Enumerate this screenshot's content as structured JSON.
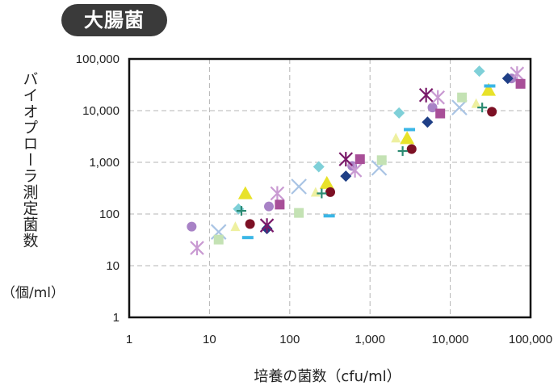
{
  "badge": {
    "label": "大腸菌"
  },
  "chart_data": {
    "type": "scatter",
    "title": "大腸菌",
    "xlabel": "培養の菌数（cfu/ml）",
    "ylabel": "バイオプローラ測定菌数",
    "yunit": "（個/ml）",
    "xscale": "log",
    "yscale": "log",
    "xlim": [
      1,
      100000
    ],
    "ylim": [
      1,
      100000
    ],
    "xticks": [
      "1",
      "10",
      "100",
      "1,000",
      "10,000",
      "100,000"
    ],
    "yticks": [
      "1",
      "10",
      "100",
      "1,000",
      "10,000",
      "100,000"
    ],
    "grid": "dashed",
    "legend": "none",
    "series": [
      {
        "marker": "circle",
        "color": "#a882c6",
        "points": [
          [
            6,
            57
          ],
          [
            55,
            140
          ],
          [
            600,
            850
          ],
          [
            6000,
            11500
          ],
          [
            58000,
            42000
          ]
        ]
      },
      {
        "marker": "x",
        "color": "#a9c4e4",
        "points": [
          [
            13,
            45
          ],
          [
            130,
            340
          ],
          [
            1300,
            780
          ],
          [
            13000,
            11500
          ]
        ]
      },
      {
        "marker": "asterisk",
        "color": "#c99ad2",
        "points": [
          [
            7,
            22
          ],
          [
            70,
            250
          ],
          [
            650,
            700
          ],
          [
            7000,
            18000
          ],
          [
            68000,
            52000
          ]
        ]
      },
      {
        "marker": "square",
        "color": "#c4e2b4",
        "points": [
          [
            13,
            32
          ],
          [
            130,
            105
          ],
          [
            1400,
            1100
          ],
          [
            14000,
            18000
          ]
        ]
      },
      {
        "marker": "triangle-large",
        "color": "#e8e22a",
        "points": [
          [
            28,
            240
          ],
          [
            290,
            380
          ],
          [
            2900,
            2800
          ],
          [
            30000,
            24000
          ]
        ]
      },
      {
        "marker": "triangle-small",
        "color": "#eef0a0",
        "points": [
          [
            21,
            56
          ],
          [
            210,
            260
          ],
          [
            2100,
            2900
          ],
          [
            21000,
            13500
          ]
        ]
      },
      {
        "marker": "diamond",
        "color": "#7fd0d8",
        "points": [
          [
            23,
            125
          ],
          [
            230,
            820
          ],
          [
            2300,
            9000
          ],
          [
            23000,
            58000
          ]
        ]
      },
      {
        "marker": "square",
        "color": "#a84f98",
        "points": [
          [
            75,
            152
          ],
          [
            750,
            1150
          ],
          [
            7500,
            8800
          ],
          [
            75000,
            33000
          ]
        ]
      },
      {
        "marker": "circle",
        "color": "#7c1024",
        "points": [
          [
            32,
            64
          ],
          [
            320,
            265
          ],
          [
            3300,
            1800
          ],
          [
            33000,
            9500
          ]
        ]
      },
      {
        "marker": "diamond",
        "color": "#1f3f86",
        "points": [
          [
            52,
            52
          ],
          [
            500,
            540
          ],
          [
            5200,
            6000
          ],
          [
            52000,
            42000
          ]
        ]
      },
      {
        "marker": "plus",
        "color": "#2b8a72",
        "points": [
          [
            25,
            115
          ],
          [
            250,
            250
          ],
          [
            2550,
            1650
          ],
          [
            25000,
            11500
          ]
        ]
      },
      {
        "marker": "asterisk",
        "color": "#7a1a6a",
        "points": [
          [
            52,
            60
          ],
          [
            500,
            1150
          ],
          [
            5000,
            20000
          ]
        ]
      },
      {
        "marker": "dash",
        "color": "#3ab6e6",
        "points": [
          [
            30,
            35
          ],
          [
            310,
            92
          ],
          [
            3100,
            4300
          ],
          [
            31000,
            30000
          ]
        ]
      }
    ]
  }
}
